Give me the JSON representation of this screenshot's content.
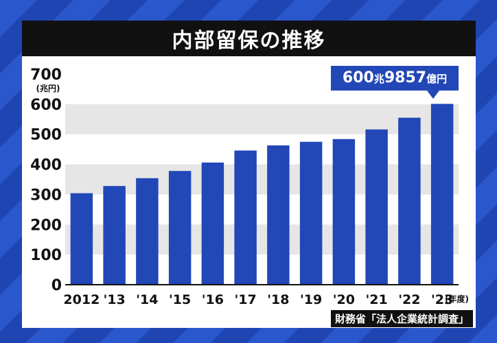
{
  "title": "内部留保の推移",
  "callout": {
    "amount1": "600",
    "unit1": "兆",
    "amount2": "9857",
    "unit2": "億円"
  },
  "source": "財務省「法人企業統計調査」",
  "colors": {
    "bar": "#2247b7",
    "title_bg": "#111111",
    "band": "#e6e6e6",
    "background": "#2a54c6"
  },
  "chart_data": {
    "type": "bar",
    "title": "内部留保の推移",
    "categories": [
      "2012",
      "'13",
      "'14",
      "'15",
      "'16",
      "'17",
      "'18",
      "'19",
      "'20",
      "'21",
      "'22",
      "'23"
    ],
    "values": [
      304,
      328,
      354,
      378,
      406,
      446,
      463,
      475,
      484,
      516,
      555,
      601
    ],
    "ylim": [
      0,
      700
    ],
    "yticks": [
      0,
      100,
      200,
      300,
      400,
      500,
      600,
      700
    ],
    "ylabel": "(兆円)",
    "xlabel": "(年度)",
    "grid": "alternating bands"
  }
}
